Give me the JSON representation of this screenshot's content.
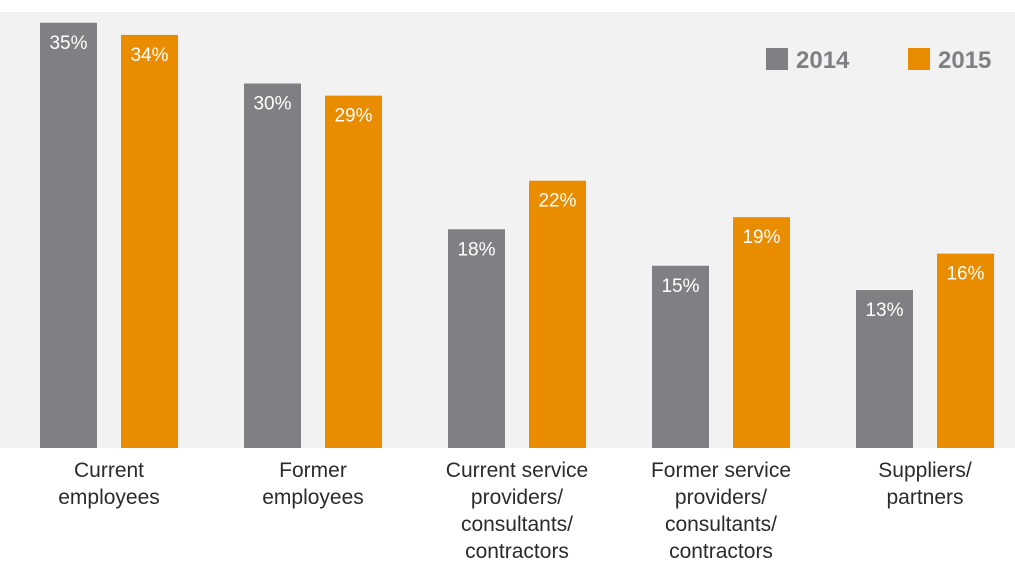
{
  "chart_data": {
    "type": "bar",
    "categories": [
      [
        "Current",
        "employees"
      ],
      [
        "Former",
        "employees"
      ],
      [
        "Current service",
        "providers/",
        "consultants/",
        "contractors"
      ],
      [
        "Former service",
        "providers/",
        "consultants/",
        "contractors"
      ],
      [
        "Suppliers/",
        "partners"
      ]
    ],
    "series": [
      {
        "name": "2014",
        "color": "#808084",
        "values": [
          35,
          30,
          18,
          15,
          13
        ],
        "labels": [
          "35%",
          "30%",
          "18%",
          "15%",
          "13%"
        ]
      },
      {
        "name": "2015",
        "color": "#ea8c00",
        "values": [
          34,
          29,
          22,
          19,
          16
        ],
        "labels": [
          "34%",
          "29%",
          "22%",
          "19%",
          "16%"
        ]
      }
    ],
    "ylim": [
      0,
      35
    ],
    "grid": false,
    "legend_position": "top-right",
    "plot_background": "#f2f2f3"
  }
}
